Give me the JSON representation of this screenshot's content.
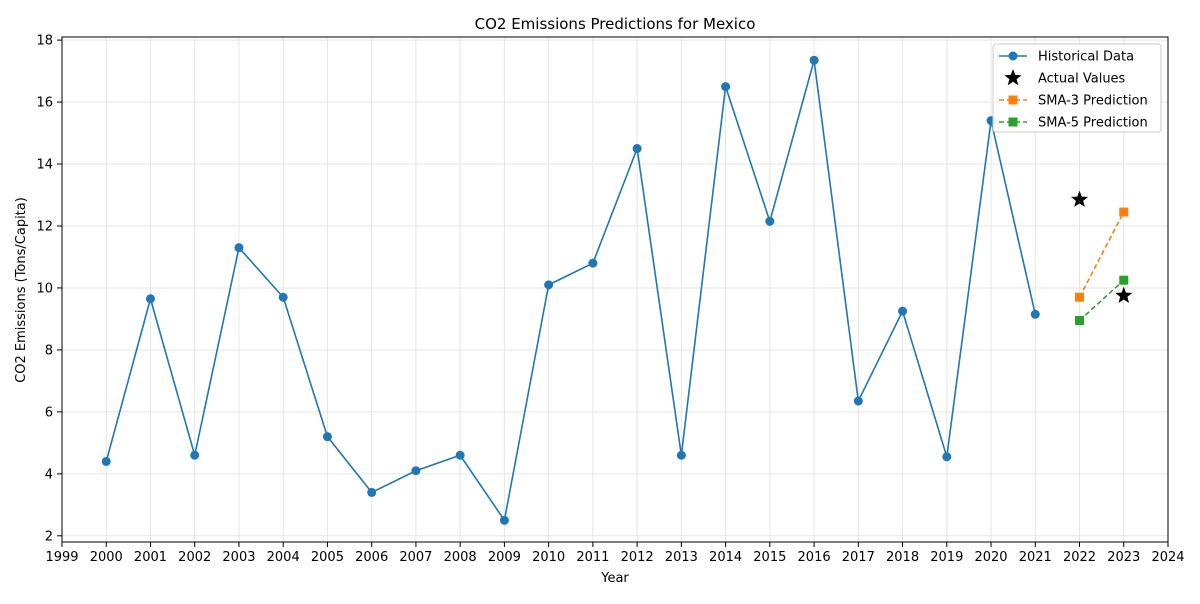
{
  "chart_data": {
    "type": "line",
    "title": "CO2 Emissions Predictions for Mexico",
    "xlabel": "Year",
    "ylabel": "CO2 Emissions (Tons/Capita)",
    "xlim": [
      1999,
      2024
    ],
    "ylim": [
      1.8,
      18.1
    ],
    "x_ticks": [
      "1999",
      "2000",
      "2001",
      "2002",
      "2003",
      "2004",
      "2005",
      "2006",
      "2007",
      "2008",
      "2009",
      "2010",
      "2011",
      "2012",
      "2013",
      "2014",
      "2015",
      "2016",
      "2017",
      "2018",
      "2019",
      "2020",
      "2021",
      "2022",
      "2023",
      "2024"
    ],
    "y_ticks": [
      "2",
      "4",
      "6",
      "8",
      "10",
      "12",
      "14",
      "16",
      "18"
    ],
    "grid": true,
    "legend_position": "top-right",
    "series": [
      {
        "name": "Historical Data",
        "color": "#1f77b4",
        "marker": "circle",
        "line": "solid",
        "x": [
          2000,
          2001,
          2002,
          2003,
          2004,
          2005,
          2006,
          2007,
          2008,
          2009,
          2010,
          2011,
          2012,
          2013,
          2014,
          2015,
          2016,
          2017,
          2018,
          2019,
          2020,
          2021
        ],
        "y": [
          4.4,
          9.65,
          4.6,
          11.3,
          9.7,
          5.2,
          3.4,
          4.1,
          4.6,
          2.5,
          10.1,
          10.8,
          14.5,
          4.6,
          16.5,
          12.15,
          17.35,
          6.35,
          9.25,
          4.55,
          15.4,
          9.15
        ]
      },
      {
        "name": "Actual Values",
        "color": "#000000",
        "marker": "star",
        "line": "none",
        "x": [
          2022,
          2023
        ],
        "y": [
          12.85,
          9.75
        ]
      },
      {
        "name": "SMA-3 Prediction",
        "color": "#ff7f0e",
        "marker": "square",
        "line": "dashed",
        "x": [
          2022,
          2023
        ],
        "y": [
          9.7,
          12.45
        ]
      },
      {
        "name": "SMA-5 Prediction",
        "color": "#2ca02c",
        "marker": "square",
        "line": "dashed",
        "x": [
          2022,
          2023
        ],
        "y": [
          8.95,
          10.25
        ]
      }
    ]
  }
}
